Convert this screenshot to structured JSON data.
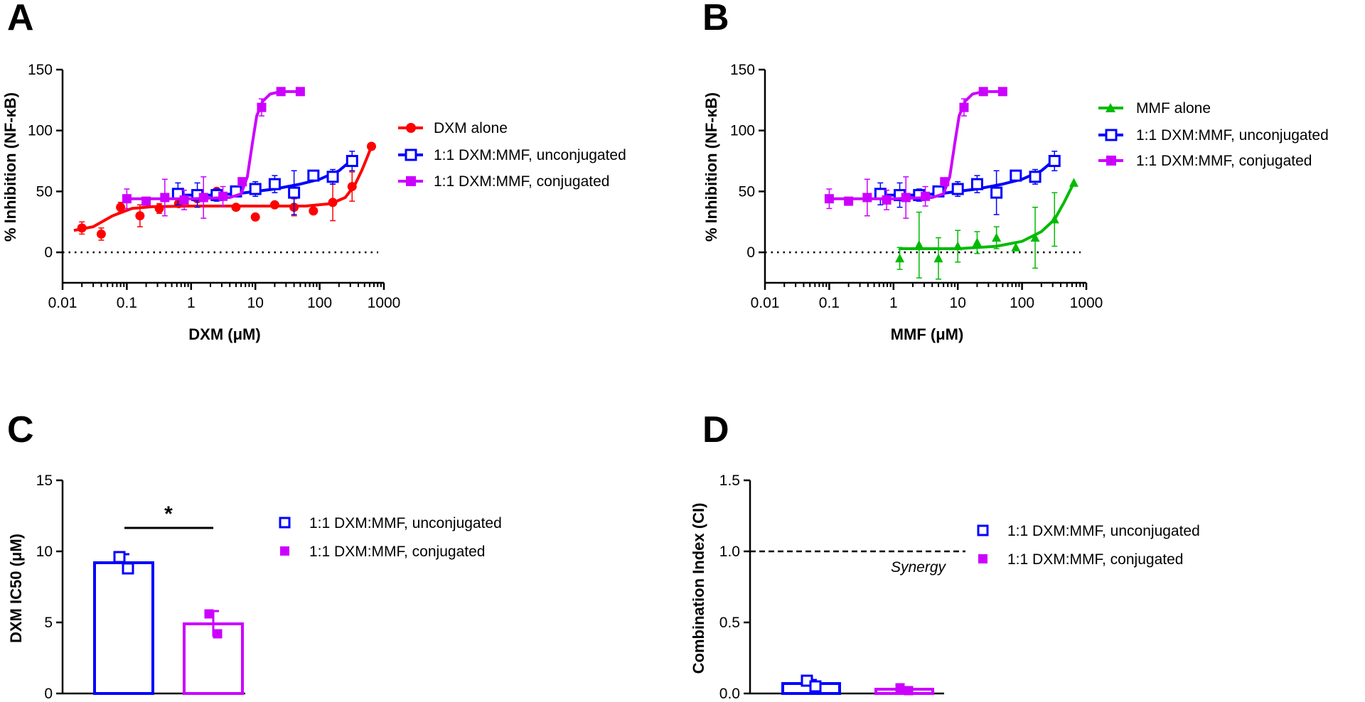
{
  "panel_letters": {
    "a": "A",
    "b": "B",
    "c": "C",
    "d": "D"
  },
  "colors": {
    "dxm": "#ff0000",
    "unconj": "#0000ff",
    "conj": "#cc00ff",
    "mmf": "#00bb00",
    "axis": "#000000"
  },
  "legend_a": {
    "dxm": "DXM alone",
    "unconj": "1:1 DXM:MMF, unconjugated",
    "conj": "1:1 DXM:MMF, conjugated"
  },
  "legend_b": {
    "mmf": "MMF alone",
    "unconj": "1:1 DXM:MMF, unconjugated",
    "conj": "1:1 DXM:MMF, conjugated"
  },
  "legend_c": {
    "unconj": "1:1 DXM:MMF, unconjugated",
    "conj": "1:1 DXM:MMF, conjugated"
  },
  "legend_d": {
    "unconj": "1:1 DXM:MMF, unconjugated",
    "conj": "1:1 DXM:MMF, conjugated"
  },
  "significance": "*",
  "synergy_label": "Synergy",
  "chart_data": [
    {
      "panel": "A",
      "type": "scatter",
      "xlabel": "DXM (μM)",
      "ylabel": "% Inhibition (NF-κB)",
      "xscale": "log",
      "xlim": [
        0.01,
        1000
      ],
      "ylim": [
        -25,
        150
      ],
      "xticks": [
        {
          "v": 0.01,
          "label": "0.01"
        },
        {
          "v": 0.1,
          "label": "0.1"
        },
        {
          "v": 1,
          "label": "1"
        },
        {
          "v": 10,
          "label": "10"
        },
        {
          "v": 100,
          "label": "100"
        },
        {
          "v": 1000,
          "label": "1000"
        }
      ],
      "yticks": [
        {
          "v": 0,
          "label": "0"
        },
        {
          "v": 50,
          "label": "50"
        },
        {
          "v": 100,
          "label": "100"
        },
        {
          "v": 150,
          "label": "150"
        }
      ],
      "reference_line": 0,
      "series": [
        {
          "name": "DXM alone",
          "key": "dxm",
          "marker": "circle",
          "points": [
            [
              0.02,
              20,
              5
            ],
            [
              0.04,
              15,
              5
            ],
            [
              0.08,
              37,
              4
            ],
            [
              0.16,
              30,
              9
            ],
            [
              0.32,
              36,
              4
            ],
            [
              0.64,
              40,
              0
            ],
            [
              1.25,
              44,
              0
            ],
            [
              2.5,
              50,
              0
            ],
            [
              5,
              37,
              0
            ],
            [
              10,
              29,
              0
            ],
            [
              20,
              39,
              0
            ],
            [
              40,
              37,
              7
            ],
            [
              80,
              34,
              0
            ],
            [
              160,
              41,
              15
            ],
            [
              320,
              54,
              12
            ],
            [
              640,
              87,
              0
            ]
          ],
          "curve": [
            [
              0.015,
              18
            ],
            [
              0.03,
              21
            ],
            [
              0.06,
              30
            ],
            [
              0.12,
              36
            ],
            [
              0.25,
              37.5
            ],
            [
              1,
              38
            ],
            [
              10,
              38
            ],
            [
              60,
              38
            ],
            [
              150,
              40
            ],
            [
              250,
              45
            ],
            [
              350,
              55
            ],
            [
              450,
              67
            ],
            [
              550,
              78
            ],
            [
              640,
              87
            ]
          ]
        },
        {
          "name": "1:1 DXM:MMF, unconjugated",
          "key": "unconj",
          "marker": "open-square",
          "points": [
            [
              0.625,
              48,
              9
            ],
            [
              1.25,
              47,
              10
            ],
            [
              2.5,
              47,
              5
            ],
            [
              5,
              50,
              4
            ],
            [
              10,
              52,
              6
            ],
            [
              20,
              56,
              7
            ],
            [
              40,
              49,
              18
            ],
            [
              80,
              63,
              0
            ],
            [
              160,
              62,
              6
            ],
            [
              320,
              75,
              8
            ]
          ],
          "curve": [
            [
              0.6,
              47
            ],
            [
              2,
              47
            ],
            [
              5,
              48
            ],
            [
              10,
              50
            ],
            [
              20,
              52
            ],
            [
              50,
              56
            ],
            [
              100,
              60
            ],
            [
              200,
              67
            ],
            [
              320,
              76
            ]
          ]
        },
        {
          "name": "1:1 DXM:MMF, conjugated",
          "key": "conj",
          "marker": "filled-square",
          "points": [
            [
              0.1,
              44,
              8
            ],
            [
              0.2,
              42,
              0
            ],
            [
              0.39,
              45,
              15
            ],
            [
              0.78,
              43,
              8
            ],
            [
              1.56,
              45,
              17
            ],
            [
              3.13,
              46,
              8
            ],
            [
              6.25,
              58,
              0
            ],
            [
              12.5,
              119,
              7
            ],
            [
              25,
              132,
              0
            ],
            [
              50,
              132,
              0
            ]
          ],
          "curve": [
            [
              0.09,
              44
            ],
            [
              1,
              44
            ],
            [
              4,
              45
            ],
            [
              6,
              48
            ],
            [
              7.5,
              62
            ],
            [
              9,
              90
            ],
            [
              10.5,
              112
            ],
            [
              13,
              124
            ],
            [
              17,
              130
            ],
            [
              25,
              132
            ],
            [
              50,
              132
            ]
          ]
        }
      ]
    },
    {
      "panel": "B",
      "type": "scatter",
      "xlabel": "MMF (μM)",
      "ylabel": "% Inhibition (NF-κB)",
      "xscale": "log",
      "xlim": [
        0.01,
        1000
      ],
      "ylim": [
        -25,
        150
      ],
      "xticks": [
        {
          "v": 0.01,
          "label": "0.01"
        },
        {
          "v": 0.1,
          "label": "0.1"
        },
        {
          "v": 1,
          "label": "1"
        },
        {
          "v": 10,
          "label": "10"
        },
        {
          "v": 100,
          "label": "100"
        },
        {
          "v": 1000,
          "label": "1000"
        }
      ],
      "yticks": [
        {
          "v": 0,
          "label": "0"
        },
        {
          "v": 50,
          "label": "50"
        },
        {
          "v": 100,
          "label": "100"
        },
        {
          "v": 150,
          "label": "150"
        }
      ],
      "reference_line": 0,
      "series": [
        {
          "name": "MMF alone",
          "key": "mmf",
          "marker": "triangle",
          "points": [
            [
              1.25,
              -5,
              9
            ],
            [
              2.5,
              6,
              27
            ],
            [
              5,
              -5,
              17
            ],
            [
              10,
              5,
              13
            ],
            [
              20,
              8,
              9
            ],
            [
              40,
              12,
              9
            ],
            [
              80,
              4,
              0
            ],
            [
              160,
              12,
              25
            ],
            [
              320,
              27,
              22
            ],
            [
              640,
              57,
              0
            ]
          ],
          "curve": [
            [
              1.2,
              3
            ],
            [
              10,
              3
            ],
            [
              40,
              5
            ],
            [
              100,
              9
            ],
            [
              200,
              17
            ],
            [
              320,
              27
            ],
            [
              450,
              41
            ],
            [
              640,
              57
            ]
          ]
        },
        {
          "name": "1:1 DXM:MMF, unconjugated",
          "key": "unconj",
          "marker": "open-square",
          "points": [
            [
              0.625,
              48,
              9
            ],
            [
              1.25,
              47,
              10
            ],
            [
              2.5,
              47,
              5
            ],
            [
              5,
              50,
              4
            ],
            [
              10,
              52,
              6
            ],
            [
              20,
              56,
              7
            ],
            [
              40,
              49,
              18
            ],
            [
              80,
              63,
              0
            ],
            [
              160,
              62,
              6
            ],
            [
              320,
              75,
              8
            ]
          ],
          "curve": [
            [
              0.6,
              47
            ],
            [
              2,
              47
            ],
            [
              5,
              48
            ],
            [
              10,
              50
            ],
            [
              20,
              52
            ],
            [
              50,
              56
            ],
            [
              100,
              60
            ],
            [
              200,
              67
            ],
            [
              320,
              76
            ]
          ]
        },
        {
          "name": "1:1 DXM:MMF, conjugated",
          "key": "conj",
          "marker": "filled-square",
          "points": [
            [
              0.1,
              44,
              8
            ],
            [
              0.2,
              42,
              0
            ],
            [
              0.39,
              45,
              15
            ],
            [
              0.78,
              43,
              8
            ],
            [
              1.56,
              45,
              17
            ],
            [
              3.13,
              46,
              8
            ],
            [
              6.25,
              58,
              0
            ],
            [
              12.5,
              119,
              7
            ],
            [
              25,
              132,
              0
            ],
            [
              50,
              132,
              0
            ]
          ],
          "curve": [
            [
              0.09,
              44
            ],
            [
              1,
              44
            ],
            [
              4,
              45
            ],
            [
              6,
              48
            ],
            [
              7.5,
              62
            ],
            [
              9,
              90
            ],
            [
              10.5,
              112
            ],
            [
              13,
              124
            ],
            [
              17,
              130
            ],
            [
              25,
              132
            ],
            [
              50,
              132
            ]
          ]
        }
      ]
    },
    {
      "panel": "C",
      "type": "bar",
      "ylabel": "DXM IC50 (μM)",
      "ylim": [
        0,
        15
      ],
      "yticks": [
        {
          "v": 0,
          "label": "0"
        },
        {
          "v": 5,
          "label": "5"
        },
        {
          "v": 10,
          "label": "10"
        },
        {
          "v": 15,
          "label": "15"
        }
      ],
      "bars": [
        {
          "name": "1:1 DXM:MMF, unconjugated",
          "key": "unconj",
          "marker": "open-square",
          "mean": 9.2,
          "sd": 0.6,
          "points": [
            9.6,
            8.8
          ]
        },
        {
          "name": "1:1 DXM:MMF, conjugated",
          "key": "conj",
          "marker": "filled-square",
          "mean": 4.9,
          "sd": 0.9,
          "points": [
            5.6,
            4.2
          ]
        }
      ],
      "significance": "*"
    },
    {
      "panel": "D",
      "type": "bar",
      "ylabel": "Combination Index (CI)",
      "ylim": [
        0,
        1.5
      ],
      "yticks": [
        {
          "v": 0,
          "label": "0.0"
        },
        {
          "v": 0.5,
          "label": "0.5"
        },
        {
          "v": 1.0,
          "label": "1.0"
        },
        {
          "v": 1.5,
          "label": "1.5"
        }
      ],
      "reference_line": 1.0,
      "bars": [
        {
          "name": "1:1 DXM:MMF, unconjugated",
          "key": "unconj",
          "marker": "open-square",
          "mean": 0.07,
          "sd": 0.025,
          "points": [
            0.09,
            0.05
          ]
        },
        {
          "name": "1:1 DXM:MMF, conjugated",
          "key": "conj",
          "marker": "filled-square",
          "mean": 0.03,
          "sd": 0.015,
          "points": [
            0.04,
            0.02
          ]
        }
      ]
    }
  ]
}
